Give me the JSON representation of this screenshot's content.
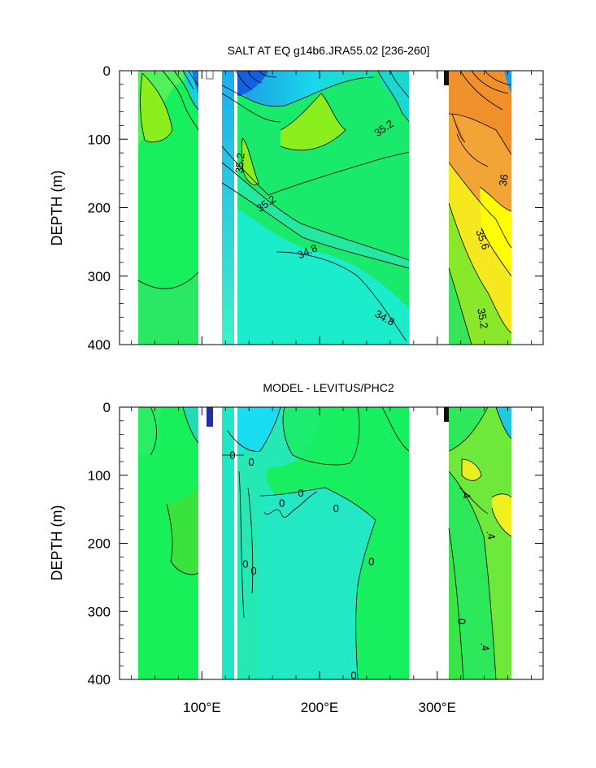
{
  "chart_data": [
    {
      "type": "contour",
      "title": "SALT AT EQ g14b6.JRA55.02 [236-260]",
      "ylabel": "DEPTH (m)",
      "xlabel": "",
      "xlim": [
        30,
        390
      ],
      "ylim": [
        0,
        400
      ],
      "y_inverted": true,
      "x_ticks": [
        100,
        200,
        300
      ],
      "x_tick_labels": [
        "100°E",
        "200°E",
        "300°E"
      ],
      "y_ticks": [
        0,
        100,
        200,
        300,
        400
      ],
      "y_tick_labels": [
        "0",
        "100",
        "200",
        "300",
        "400"
      ],
      "contour_labels": [
        {
          "text": "35.2",
          "x": 255,
          "y": 85,
          "angle": -35
        },
        {
          "text": "35.2",
          "x": 133,
          "y": 135,
          "angle": -85
        },
        {
          "text": "35.2",
          "x": 155,
          "y": 195,
          "angle": -35
        },
        {
          "text": "34.8",
          "x": 190,
          "y": 265,
          "angle": -25
        },
        {
          "text": "34.8",
          "x": 255,
          "y": 362,
          "angle": 30
        },
        {
          "text": "36",
          "x": 357,
          "y": 160,
          "angle": -80
        },
        {
          "text": "35.6",
          "x": 338,
          "y": 247,
          "angle": 70
        },
        {
          "text": "35.2",
          "x": 338,
          "y": 362,
          "angle": 80
        }
      ]
    },
    {
      "type": "contour",
      "title": "MODEL - LEVITUS/PHC2",
      "ylabel": "DEPTH (m)",
      "xlabel": "",
      "xlim": [
        30,
        390
      ],
      "ylim": [
        0,
        400
      ],
      "y_inverted": true,
      "x_ticks": [
        100,
        200,
        300
      ],
      "x_tick_labels": [
        "100°E",
        "200°E",
        "300°E"
      ],
      "y_ticks": [
        0,
        100,
        200,
        300,
        400
      ],
      "y_tick_labels": [
        "0",
        "100",
        "200",
        "300",
        "400"
      ],
      "contour_labels": [
        {
          "text": "0",
          "x": 126,
          "y": 72,
          "angle": 0
        },
        {
          "text": "0",
          "x": 142,
          "y": 82,
          "angle": 0
        },
        {
          "text": "0",
          "x": 168,
          "y": 142,
          "angle": 0
        },
        {
          "text": "0",
          "x": 184,
          "y": 127,
          "angle": 0
        },
        {
          "text": "0",
          "x": 214,
          "y": 150,
          "angle": 0
        },
        {
          "text": "0",
          "x": 137,
          "y": 232,
          "angle": 0
        },
        {
          "text": "0",
          "x": 144,
          "y": 242,
          "angle": 0
        },
        {
          "text": "0",
          "x": 244,
          "y": 228,
          "angle": 0
        },
        {
          "text": "0",
          "x": 229,
          "y": 395,
          "angle": 0
        },
        {
          "text": "0",
          "x": 320,
          "y": 315,
          "angle": 90
        },
        {
          "text": ".4",
          "x": 324,
          "y": 128,
          "angle": 80
        },
        {
          "text": ".4",
          "x": 345,
          "y": 188,
          "angle": 80
        },
        {
          "text": ".4",
          "x": 340,
          "y": 352,
          "angle": 80
        }
      ]
    }
  ]
}
